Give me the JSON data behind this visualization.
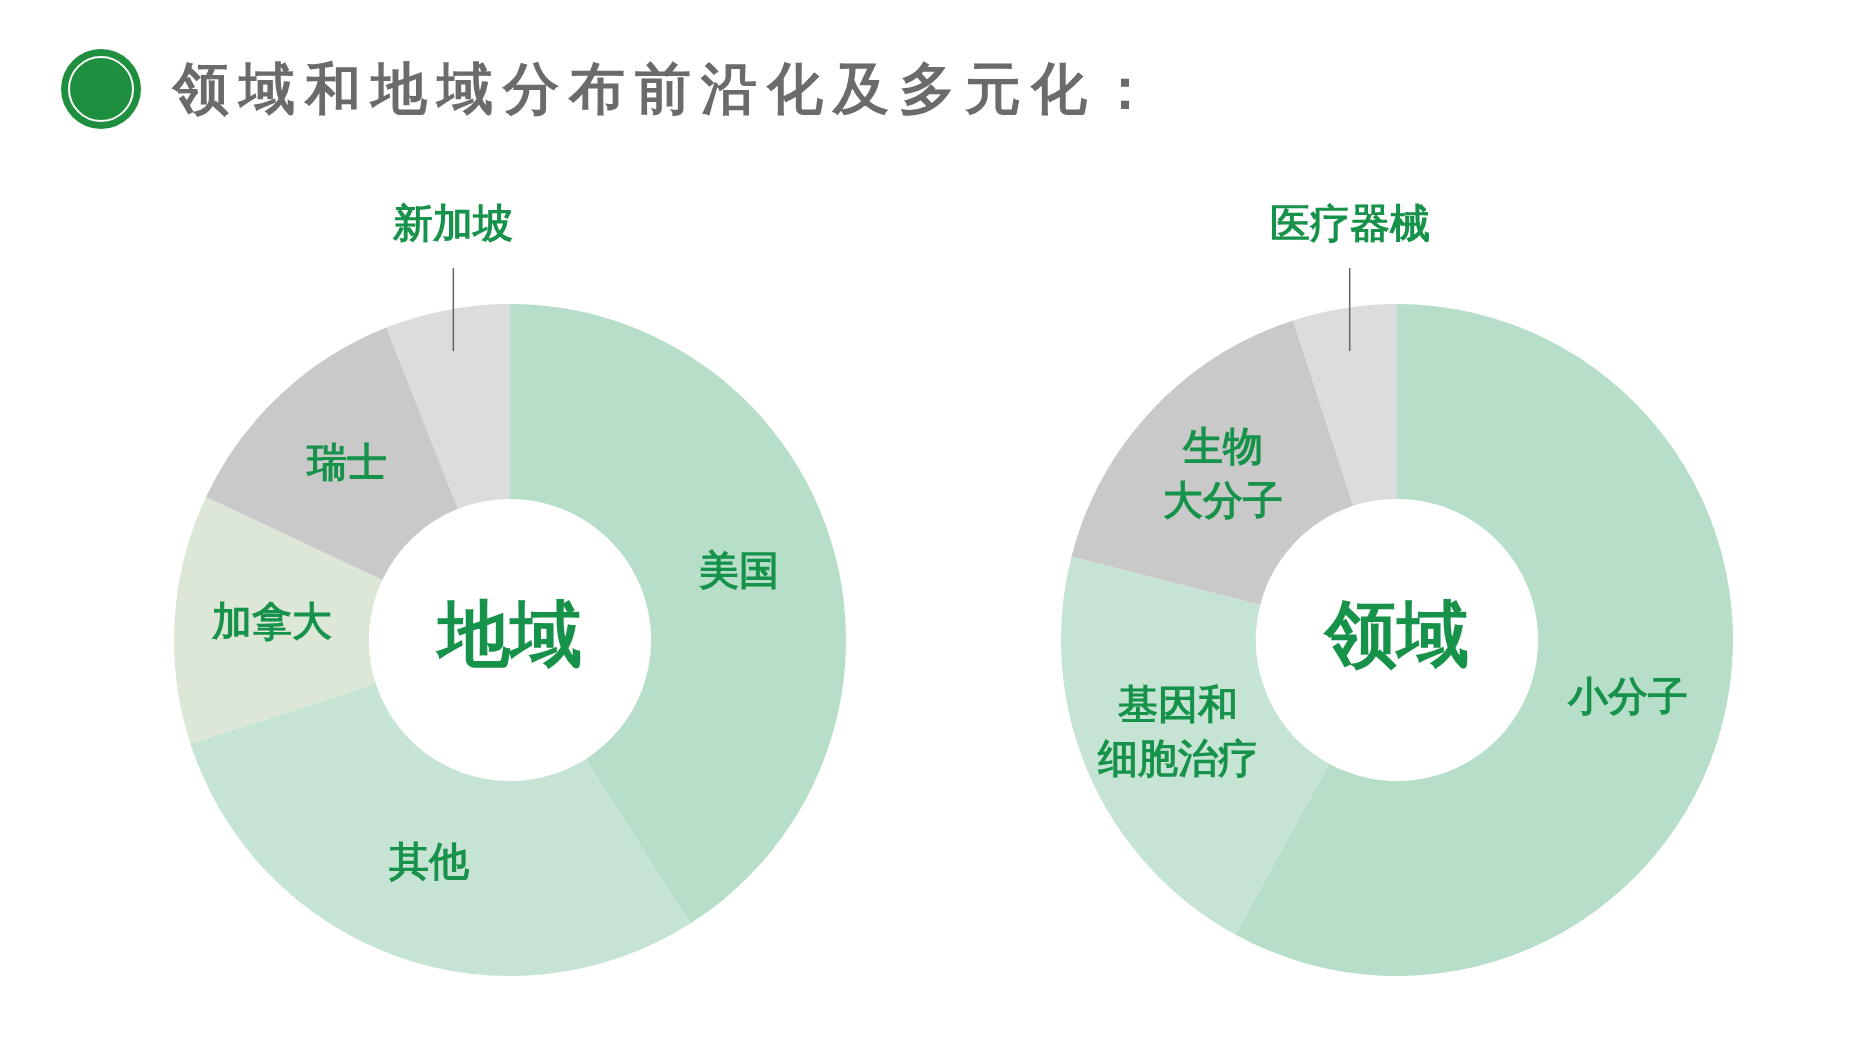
{
  "chart_data": [
    {
      "type": "donut",
      "title": "地域",
      "annotations": [
        "领域和地域分布前沿化及多元化："
      ],
      "categories": [
        "美国",
        "其他",
        "加拿大",
        "瑞士",
        "新加坡"
      ],
      "values": [
        41,
        29,
        12,
        12,
        6
      ],
      "colors": [
        "#b6dec8",
        "#c6e4d3",
        "#dce7d7",
        "#c9c9ca",
        "#dcdcdd"
      ],
      "legend": false
    },
    {
      "type": "donut",
      "title": "领域",
      "categories": [
        "小分子",
        "基因和细胞治疗",
        "生物大分子",
        "医疗器械"
      ],
      "values": [
        58,
        21,
        16,
        5
      ],
      "colors": [
        "#b6dec8",
        "#c6e4d3",
        "#c9c9ca",
        "#dcdcdd"
      ],
      "legend": false
    }
  ]
}
